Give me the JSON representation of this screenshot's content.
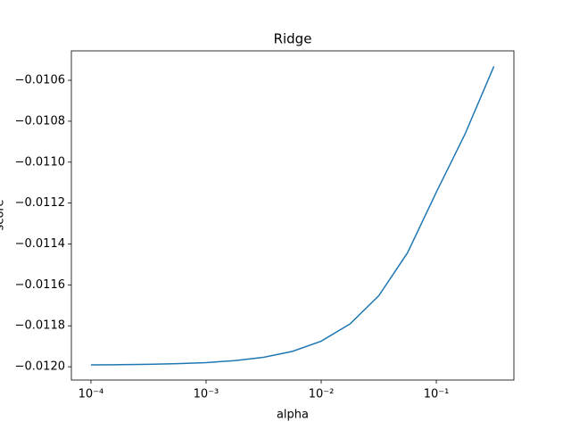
{
  "chart_data": {
    "type": "line",
    "title": "Ridge",
    "xlabel": "alpha",
    "ylabel": "score",
    "xscale": "log",
    "x": [
      0.0001,
      0.00017783,
      0.00031623,
      0.00056234,
      0.001,
      0.0017783,
      0.0031623,
      0.0056234,
      0.01,
      0.017783,
      0.031623,
      0.056234,
      0.1,
      0.17783,
      0.31623
    ],
    "series": [
      {
        "name": "score",
        "color": "#1f77b4",
        "values": [
          -0.011991,
          -0.01199,
          -0.011988,
          -0.011985,
          -0.01198,
          -0.01197,
          -0.011954,
          -0.011925,
          -0.011875,
          -0.011791,
          -0.011653,
          -0.011443,
          -0.011147,
          -0.010862,
          -0.010532
        ]
      }
    ],
    "xlim": [
      6.76e-05,
      0.472
    ],
    "ylim": [
      -0.012065,
      -0.010456
    ],
    "xticks": [
      {
        "value": 0.0001,
        "label": "10⁻⁴"
      },
      {
        "value": 0.001,
        "label": "10⁻³"
      },
      {
        "value": 0.01,
        "label": "10⁻²"
      },
      {
        "value": 0.1,
        "label": "10⁻¹"
      }
    ],
    "yticks": [
      {
        "value": -0.012,
        "label": "−0.0120"
      },
      {
        "value": -0.0118,
        "label": "−0.0118"
      },
      {
        "value": -0.0116,
        "label": "−0.0116"
      },
      {
        "value": -0.0114,
        "label": "−0.0114"
      },
      {
        "value": -0.0112,
        "label": "−0.0112"
      },
      {
        "value": -0.011,
        "label": "−0.0110"
      },
      {
        "value": -0.0108,
        "label": "−0.0108"
      },
      {
        "value": -0.0106,
        "label": "−0.0106"
      }
    ]
  }
}
